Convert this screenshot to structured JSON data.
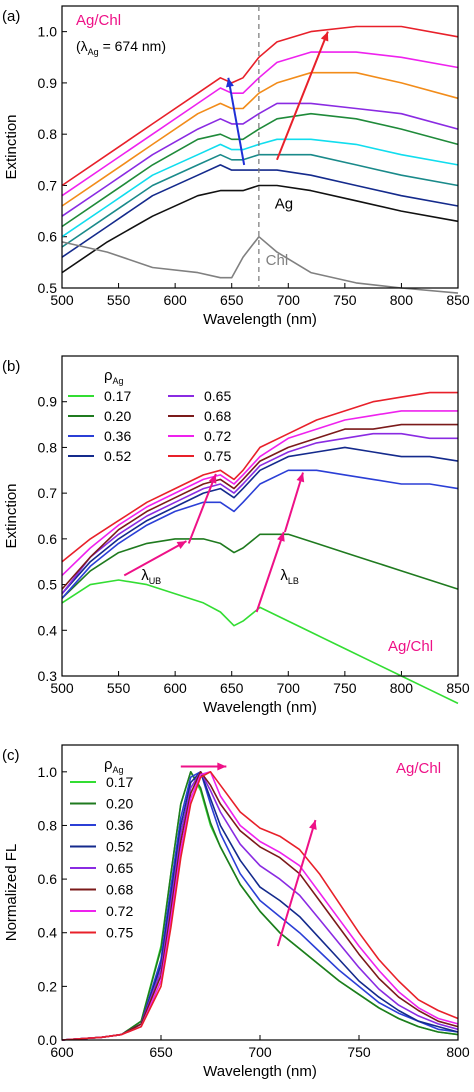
{
  "colors": {
    "green_light": "#33dd33",
    "green_dark": "#1f7a1f",
    "blue": "#2b3fd6",
    "navy": "#142a8c",
    "purple": "#8a2be2",
    "brown": "#7b1a1a",
    "magenta": "#ee22ee",
    "red": "#e8202a",
    "cyan": "#11ddee",
    "teal": "#1a8a8a",
    "black": "#111111",
    "gray": "#808080",
    "annot_pink": "#ee1187",
    "annot_red": "#e8202a",
    "annot_blue": "#1f2fd6"
  },
  "chart_data": [
    {
      "panel_label": "(a)",
      "type": "line",
      "xlabel": "Wavelength (nm)",
      "ylabel": "Extinction",
      "xlim": [
        500,
        850
      ],
      "ylim": [
        0.5,
        1.05
      ],
      "x_ticks": [
        "500",
        "550",
        "600",
        "650",
        "700",
        "750",
        "800",
        "850"
      ],
      "y_ticks": [
        "0.5",
        "0.6",
        "0.7",
        "0.8",
        "0.9",
        "1.0"
      ],
      "annotations": {
        "title": "Ag/Chl",
        "lambda_note": "(λAg = 674 nm)",
        "lambda_pre": "(λ",
        "lambda_sub": "Ag",
        "lambda_post": " = 674 nm)",
        "ag_label": "Ag",
        "chl_label": "Chl",
        "dashed_line_x": 674
      },
      "x": [
        500,
        540,
        580,
        620,
        640,
        650,
        660,
        674,
        690,
        720,
        760,
        800,
        850
      ],
      "series": [
        {
          "color": "red",
          "values": [
            0.7,
            0.76,
            0.82,
            0.88,
            0.91,
            0.9,
            0.91,
            0.95,
            0.98,
            1.0,
            1.01,
            1.01,
            0.99
          ]
        },
        {
          "color": "magenta",
          "values": [
            0.68,
            0.74,
            0.8,
            0.86,
            0.89,
            0.88,
            0.88,
            0.91,
            0.94,
            0.96,
            0.96,
            0.95,
            0.93
          ]
        },
        {
          "color": "orange",
          "values": [
            0.66,
            0.72,
            0.78,
            0.84,
            0.86,
            0.85,
            0.85,
            0.88,
            0.9,
            0.92,
            0.92,
            0.9,
            0.87
          ]
        },
        {
          "color": "purple",
          "values": [
            0.64,
            0.7,
            0.76,
            0.81,
            0.83,
            0.82,
            0.82,
            0.84,
            0.86,
            0.86,
            0.85,
            0.84,
            0.81
          ]
        },
        {
          "color": "green",
          "values": [
            0.62,
            0.68,
            0.74,
            0.79,
            0.8,
            0.79,
            0.79,
            0.81,
            0.83,
            0.84,
            0.83,
            0.81,
            0.78
          ]
        },
        {
          "color": "cyan",
          "values": [
            0.6,
            0.66,
            0.72,
            0.76,
            0.78,
            0.77,
            0.77,
            0.78,
            0.79,
            0.79,
            0.78,
            0.76,
            0.74
          ]
        },
        {
          "color": "teal",
          "values": [
            0.58,
            0.64,
            0.7,
            0.74,
            0.76,
            0.75,
            0.75,
            0.76,
            0.76,
            0.76,
            0.74,
            0.72,
            0.7
          ]
        },
        {
          "color": "navy",
          "values": [
            0.56,
            0.62,
            0.68,
            0.72,
            0.74,
            0.73,
            0.73,
            0.73,
            0.73,
            0.72,
            0.7,
            0.68,
            0.66
          ]
        },
        {
          "color": "black",
          "values": [
            0.53,
            0.59,
            0.64,
            0.68,
            0.69,
            0.69,
            0.69,
            0.7,
            0.7,
            0.69,
            0.67,
            0.65,
            0.63
          ]
        },
        {
          "color": "gray",
          "values": [
            0.59,
            0.57,
            0.54,
            0.53,
            0.52,
            0.52,
            0.56,
            0.6,
            0.57,
            0.53,
            0.51,
            0.5,
            0.49
          ]
        }
      ]
    },
    {
      "panel_label": "(b)",
      "type": "line",
      "xlabel": "Wavelength (nm)",
      "ylabel": "Extinction",
      "xlim": [
        500,
        850
      ],
      "ylim": [
        0.3,
        1.0
      ],
      "x_ticks": [
        "500",
        "550",
        "600",
        "650",
        "700",
        "750",
        "800",
        "850"
      ],
      "y_ticks": [
        "0.3",
        "0.4",
        "0.5",
        "0.6",
        "0.7",
        "0.8",
        "0.9"
      ],
      "legend_title": "ρAg",
      "legend_title_main": "ρ",
      "legend_title_sub": "Ag",
      "annotations": {
        "title": "Ag/Chl",
        "lambda_ub": "λUB",
        "lambda_lb": "λLB",
        "ub_main": "λ",
        "ub_sub": "UB",
        "lb_main": "λ",
        "lb_sub": "LB"
      },
      "x": [
        500,
        525,
        550,
        575,
        600,
        625,
        640,
        652,
        660,
        675,
        700,
        725,
        750,
        775,
        800,
        825,
        850
      ],
      "series": [
        {
          "name": "0.17",
          "color": "green_light",
          "values": [
            0.46,
            0.5,
            0.51,
            0.5,
            0.48,
            0.46,
            0.44,
            0.41,
            0.42,
            0.45,
            0.42,
            0.39,
            0.36,
            0.33,
            0.3,
            0.27,
            0.24
          ]
        },
        {
          "name": "0.20",
          "color": "green_dark",
          "values": [
            0.47,
            0.53,
            0.57,
            0.59,
            0.6,
            0.6,
            0.59,
            0.57,
            0.58,
            0.61,
            0.61,
            0.59,
            0.57,
            0.55,
            0.53,
            0.51,
            0.49
          ]
        },
        {
          "name": "0.36",
          "color": "blue",
          "values": [
            0.47,
            0.54,
            0.59,
            0.63,
            0.66,
            0.68,
            0.68,
            0.66,
            0.68,
            0.72,
            0.75,
            0.75,
            0.74,
            0.73,
            0.72,
            0.72,
            0.71
          ]
        },
        {
          "name": "0.52",
          "color": "navy",
          "values": [
            0.48,
            0.55,
            0.6,
            0.64,
            0.67,
            0.7,
            0.71,
            0.69,
            0.71,
            0.75,
            0.78,
            0.79,
            0.8,
            0.79,
            0.78,
            0.78,
            0.77
          ]
        },
        {
          "name": "0.65",
          "color": "purple",
          "values": [
            0.48,
            0.56,
            0.61,
            0.65,
            0.68,
            0.71,
            0.72,
            0.7,
            0.72,
            0.76,
            0.79,
            0.81,
            0.82,
            0.83,
            0.83,
            0.82,
            0.82
          ]
        },
        {
          "name": "0.68",
          "color": "brown",
          "values": [
            0.49,
            0.56,
            0.62,
            0.66,
            0.69,
            0.72,
            0.73,
            0.71,
            0.73,
            0.77,
            0.8,
            0.82,
            0.84,
            0.84,
            0.85,
            0.85,
            0.85
          ]
        },
        {
          "name": "0.72",
          "color": "magenta",
          "values": [
            0.52,
            0.58,
            0.63,
            0.67,
            0.7,
            0.73,
            0.74,
            0.72,
            0.74,
            0.78,
            0.82,
            0.84,
            0.86,
            0.87,
            0.88,
            0.88,
            0.88
          ]
        },
        {
          "name": "0.75",
          "color": "red",
          "values": [
            0.55,
            0.6,
            0.64,
            0.68,
            0.71,
            0.74,
            0.75,
            0.73,
            0.75,
            0.8,
            0.83,
            0.86,
            0.88,
            0.9,
            0.91,
            0.92,
            0.92
          ]
        }
      ]
    },
    {
      "panel_label": "(c)",
      "type": "line",
      "xlabel": "Wavelength (nm)",
      "ylabel": "Normalized FL",
      "xlim": [
        600,
        800
      ],
      "ylim": [
        0.0,
        1.1
      ],
      "x_ticks": [
        "600",
        "650",
        "700",
        "750",
        "800"
      ],
      "y_ticks": [
        "0.0",
        "0.2",
        "0.4",
        "0.6",
        "0.8",
        "1.0"
      ],
      "legend_title": "ρAg",
      "legend_title_main": "ρ",
      "legend_title_sub": "Ag",
      "annotations": {
        "title": "Ag/Chl"
      },
      "x": [
        600,
        620,
        630,
        640,
        650,
        655,
        660,
        665,
        670,
        675,
        680,
        690,
        700,
        710,
        720,
        730,
        740,
        750,
        760,
        770,
        780,
        790,
        800
      ],
      "series": [
        {
          "name": "0.17",
          "color": "green_light",
          "values": [
            0.0,
            0.01,
            0.02,
            0.07,
            0.35,
            0.62,
            0.88,
            1.0,
            0.93,
            0.8,
            0.72,
            0.58,
            0.48,
            0.4,
            0.34,
            0.28,
            0.22,
            0.17,
            0.12,
            0.08,
            0.05,
            0.03,
            0.02
          ]
        },
        {
          "name": "0.20",
          "color": "green_dark",
          "values": [
            0.0,
            0.01,
            0.02,
            0.07,
            0.34,
            0.62,
            0.88,
            1.0,
            0.94,
            0.81,
            0.72,
            0.58,
            0.48,
            0.4,
            0.34,
            0.28,
            0.22,
            0.17,
            0.12,
            0.08,
            0.05,
            0.03,
            0.02
          ]
        },
        {
          "name": "0.36",
          "color": "blue",
          "values": [
            0.0,
            0.01,
            0.02,
            0.06,
            0.3,
            0.57,
            0.83,
            0.98,
            1.0,
            0.88,
            0.77,
            0.62,
            0.52,
            0.46,
            0.4,
            0.33,
            0.26,
            0.2,
            0.14,
            0.1,
            0.07,
            0.04,
            0.03
          ]
        },
        {
          "name": "0.52",
          "color": "navy",
          "values": [
            0.0,
            0.01,
            0.02,
            0.06,
            0.28,
            0.54,
            0.8,
            0.96,
            1.0,
            0.9,
            0.8,
            0.67,
            0.57,
            0.52,
            0.46,
            0.38,
            0.3,
            0.22,
            0.16,
            0.11,
            0.07,
            0.05,
            0.03
          ]
        },
        {
          "name": "0.65",
          "color": "purple",
          "values": [
            0.0,
            0.01,
            0.02,
            0.06,
            0.26,
            0.51,
            0.77,
            0.94,
            1.0,
            0.93,
            0.85,
            0.73,
            0.65,
            0.6,
            0.54,
            0.45,
            0.36,
            0.27,
            0.19,
            0.13,
            0.09,
            0.06,
            0.04
          ]
        },
        {
          "name": "0.68",
          "color": "brown",
          "values": [
            0.0,
            0.01,
            0.02,
            0.06,
            0.24,
            0.48,
            0.74,
            0.92,
            1.0,
            0.95,
            0.88,
            0.78,
            0.72,
            0.68,
            0.62,
            0.52,
            0.42,
            0.32,
            0.23,
            0.16,
            0.11,
            0.07,
            0.05
          ]
        },
        {
          "name": "0.72",
          "color": "magenta",
          "values": [
            0.0,
            0.01,
            0.02,
            0.05,
            0.22,
            0.45,
            0.71,
            0.9,
            0.99,
            1.0,
            0.91,
            0.8,
            0.74,
            0.7,
            0.65,
            0.55,
            0.45,
            0.35,
            0.26,
            0.18,
            0.12,
            0.08,
            0.06
          ]
        },
        {
          "name": "0.75",
          "color": "red",
          "values": [
            0.0,
            0.01,
            0.02,
            0.05,
            0.2,
            0.42,
            0.68,
            0.88,
            0.98,
            1.0,
            0.95,
            0.85,
            0.79,
            0.76,
            0.71,
            0.62,
            0.51,
            0.4,
            0.3,
            0.22,
            0.15,
            0.11,
            0.08
          ]
        }
      ]
    }
  ]
}
